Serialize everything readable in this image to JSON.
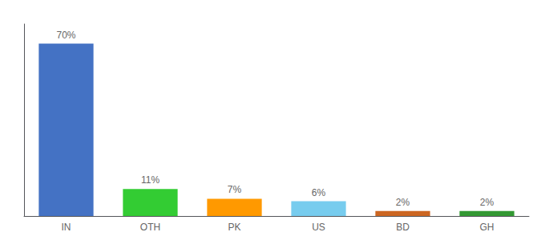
{
  "chart_data": {
    "type": "bar",
    "categories": [
      "IN",
      "OTH",
      "PK",
      "US",
      "BD",
      "GH"
    ],
    "values": [
      70,
      11,
      7,
      6,
      2,
      2
    ],
    "value_labels": [
      "70%",
      "11%",
      "7%",
      "6%",
      "2%",
      "2%"
    ],
    "colors": [
      "#4472C4",
      "#33CC33",
      "#FF9900",
      "#77CCEE",
      "#CC6622",
      "#339933"
    ],
    "ylim": [
      0,
      78
    ],
    "tick_labels": "x",
    "grid": false,
    "data_labels": true
  }
}
